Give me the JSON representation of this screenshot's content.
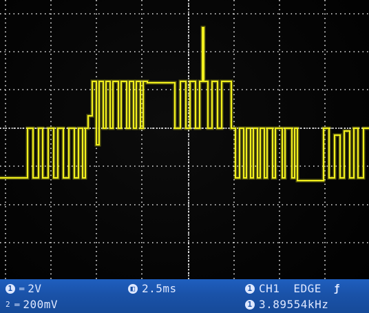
{
  "screen": {
    "trace_color": "#f2f01e",
    "grid_color": "#e6e6e6",
    "background_color": "#050505",
    "trace_levels": [
      {
        "from": 0,
        "to": 5,
        "level": "low"
      },
      {
        "from": 5,
        "to": 9,
        "level": "mid"
      },
      {
        "from": 9,
        "to": 9.7,
        "level": "high"
      },
      {
        "from": 9.7,
        "to": 10.3,
        "level": "mid"
      },
      {
        "from": 10.3,
        "to": 12,
        "level": "low"
      }
    ]
  },
  "status_bar": {
    "background_color": "#1a52a8",
    "ch1_marker": "1",
    "ch1_coupling": "═",
    "ch1_scale": "2V",
    "ch2_marker": "2",
    "ch2_coupling": "═",
    "ch2_scale": "200mV",
    "timebase_icon": "timebase-icon",
    "timebase": "2.5ms",
    "trigger_marker": "1",
    "trigger_source": "CH1",
    "trigger_type": "EDGE",
    "trigger_slope": "ƒ",
    "freq_marker": "1",
    "frequency": "3.89554kHz"
  }
}
